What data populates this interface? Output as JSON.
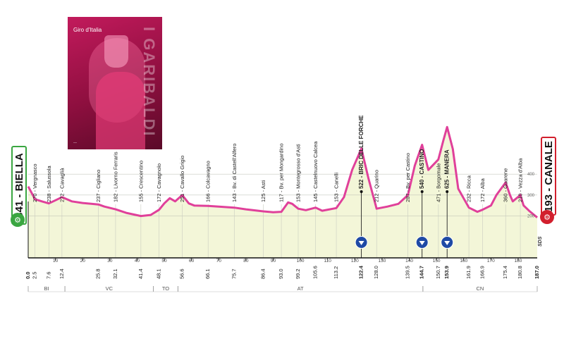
{
  "poster": {
    "vertical_text": "I GARIBALDI",
    "logo_text": "Giro d'Italia"
  },
  "start_label": "341 - BIELLA",
  "finish_label": "193 - CANALE",
  "sds_label": "SDS",
  "colors": {
    "profile": "#e0409a",
    "fill": "#f3f6d8",
    "start": "#3aa641",
    "finish": "#d21f2d"
  },
  "chart_data": {
    "type": "area",
    "title": "",
    "xlabel": "",
    "ylabel": "",
    "xlim": [
      0,
      187
    ],
    "ylim": [
      0,
      700
    ],
    "y_ticks": [
      200,
      300,
      400
    ],
    "x_ticks": [
      10,
      20,
      30,
      40,
      50,
      60,
      70,
      80,
      90,
      100,
      110,
      120,
      130,
      140,
      150,
      160,
      170,
      180
    ],
    "profile": [
      [
        0,
        341
      ],
      [
        2.5,
        280
      ],
      [
        5,
        270
      ],
      [
        7.6,
        260
      ],
      [
        10,
        275
      ],
      [
        12.4,
        290
      ],
      [
        16,
        270
      ],
      [
        20,
        262
      ],
      [
        25.8,
        255
      ],
      [
        28,
        245
      ],
      [
        32.1,
        232
      ],
      [
        36,
        215
      ],
      [
        41.4,
        200
      ],
      [
        45,
        205
      ],
      [
        48.1,
        230
      ],
      [
        50,
        260
      ],
      [
        52,
        285
      ],
      [
        54,
        270
      ],
      [
        56.6,
        300
      ],
      [
        59,
        260
      ],
      [
        61,
        250
      ],
      [
        66.1,
        248
      ],
      [
        70,
        245
      ],
      [
        75.7,
        240
      ],
      [
        80,
        232
      ],
      [
        86.4,
        222
      ],
      [
        90,
        218
      ],
      [
        93,
        220
      ],
      [
        95.5,
        265
      ],
      [
        97,
        258
      ],
      [
        99.2,
        235
      ],
      [
        102,
        228
      ],
      [
        105.6,
        240
      ],
      [
        108,
        225
      ],
      [
        113.2,
        238
      ],
      [
        116,
        290
      ],
      [
        119,
        420
      ],
      [
        122.4,
        522
      ],
      [
        125,
        380
      ],
      [
        128,
        235
      ],
      [
        132,
        245
      ],
      [
        136,
        258
      ],
      [
        139.5,
        300
      ],
      [
        142,
        440
      ],
      [
        144.7,
        540
      ],
      [
        147,
        420
      ],
      [
        150.7,
        470
      ],
      [
        152.5,
        560
      ],
      [
        153.9,
        625
      ],
      [
        156,
        520
      ],
      [
        158,
        330
      ],
      [
        161.9,
        240
      ],
      [
        165,
        220
      ],
      [
        166.9,
        230
      ],
      [
        170,
        250
      ],
      [
        172,
        300
      ],
      [
        175.4,
        360
      ],
      [
        177,
        300
      ],
      [
        178,
        270
      ],
      [
        180.8,
        300
      ],
      [
        182,
        250
      ],
      [
        184,
        225
      ],
      [
        187,
        193
      ]
    ],
    "bottom_km_labels": [
      {
        "km": 0.0,
        "text": "0.0",
        "bold": true
      },
      {
        "km": 2.5,
        "text": "2.5"
      },
      {
        "km": 7.6,
        "text": "7.6"
      },
      {
        "km": 12.4,
        "text": "12.4"
      },
      {
        "km": 25.8,
        "text": "25.8"
      },
      {
        "km": 32.1,
        "text": "32.1"
      },
      {
        "km": 41.4,
        "text": "41.4"
      },
      {
        "km": 48.1,
        "text": "48.1"
      },
      {
        "km": 56.6,
        "text": "56.6"
      },
      {
        "km": 66.1,
        "text": "66.1"
      },
      {
        "km": 75.7,
        "text": "75.7"
      },
      {
        "km": 86.4,
        "text": "86.4"
      },
      {
        "km": 93.0,
        "text": "93.0"
      },
      {
        "km": 99.2,
        "text": "99.2"
      },
      {
        "km": 105.6,
        "text": "105.6"
      },
      {
        "km": 113.2,
        "text": "113.2"
      },
      {
        "km": 122.4,
        "text": "122.4",
        "bold": true
      },
      {
        "km": 128.0,
        "text": "128.0"
      },
      {
        "km": 139.5,
        "text": "139.5"
      },
      {
        "km": 144.7,
        "text": "144.7",
        "bold": true
      },
      {
        "km": 150.7,
        "text": "150.7"
      },
      {
        "km": 153.9,
        "text": "153.9",
        "bold": true
      },
      {
        "km": 161.9,
        "text": "161.9"
      },
      {
        "km": 166.9,
        "text": "166.9"
      },
      {
        "km": 175.4,
        "text": "175.4"
      },
      {
        "km": 180.8,
        "text": "180.8"
      },
      {
        "km": 187.0,
        "text": "187.0",
        "bold": true
      }
    ],
    "places": [
      {
        "km": 2.5,
        "text": "270 - Vergnasco"
      },
      {
        "km": 7.6,
        "text": "238 - Salussola"
      },
      {
        "km": 12.4,
        "text": "272 - Cavaglià"
      },
      {
        "km": 25.8,
        "text": "237 - Cigliano"
      },
      {
        "km": 32.1,
        "text": "182 - Livorno Ferraris"
      },
      {
        "km": 41.4,
        "text": "155 - Crescentino"
      },
      {
        "km": 48.1,
        "text": "172 - Cavagnolo"
      },
      {
        "km": 56.6,
        "text": "251 - Cavallo Grigio"
      },
      {
        "km": 66.1,
        "text": "166 - Colcavagno"
      },
      {
        "km": 75.7,
        "text": "143 - Bv. di Castell'Alfero"
      },
      {
        "km": 86.4,
        "text": "125 - Asti"
      },
      {
        "km": 93.0,
        "text": "117 - Bv. per Mongardino"
      },
      {
        "km": 99.2,
        "text": "153 - Montegrosso d'Asti"
      },
      {
        "km": 105.6,
        "text": "145 - Castelnuovo Calcea"
      },
      {
        "km": 113.2,
        "text": "153 - Canelli"
      },
      {
        "km": 122.4,
        "text": "522 - BRIC DELLE FORCHE",
        "bold": true
      },
      {
        "km": 128.0,
        "text": "212 - Quarino"
      },
      {
        "km": 139.5,
        "text": "287 - Bv. per Castino"
      },
      {
        "km": 144.7,
        "text": "540 - CASTINO",
        "bold": true
      },
      {
        "km": 150.7,
        "text": "471 - Borgomale"
      },
      {
        "km": 153.9,
        "text": "625 - MANERA",
        "bold": true
      },
      {
        "km": 161.9,
        "text": "232 - Ricca"
      },
      {
        "km": 166.9,
        "text": "172 - Alba"
      },
      {
        "km": 175.4,
        "text": "360 - Guarene"
      },
      {
        "km": 180.8,
        "text": "210 - Vezza d'Alba"
      }
    ],
    "kom_km": [
      122.4,
      144.7,
      153.9
    ],
    "regions": [
      {
        "text": "BI",
        "from": 0,
        "to": 13.5
      },
      {
        "text": "VC",
        "from": 13.5,
        "to": 46
      },
      {
        "text": "TO",
        "from": 46,
        "to": 55
      },
      {
        "text": "AT",
        "from": 55,
        "to": 145
      },
      {
        "text": "CN",
        "from": 145,
        "to": 187
      }
    ]
  }
}
